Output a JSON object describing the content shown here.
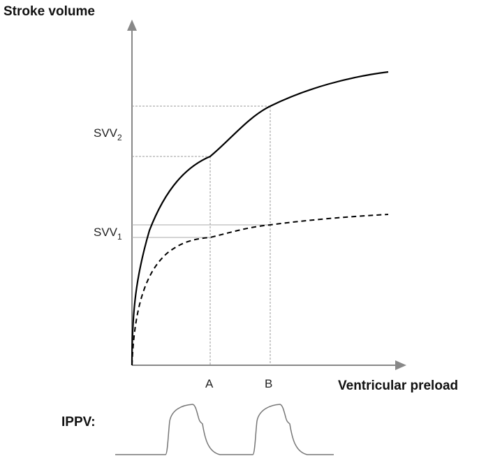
{
  "diagram": {
    "y_axis_label": "Stroke volume",
    "x_axis_label": "Ventricular preload",
    "x_markers": [
      "A",
      "B"
    ],
    "svv_labels": [
      {
        "base": "SVV",
        "subscript": "2"
      },
      {
        "base": "SVV",
        "subscript": "1"
      }
    ],
    "ippv_label": "IPPV:",
    "curves": [
      {
        "style": "solid",
        "description": "upper"
      },
      {
        "style": "dashed",
        "description": "lower"
      }
    ],
    "colors": {
      "axis": "#888888",
      "curve": "#000000",
      "guide": "#999999"
    }
  }
}
